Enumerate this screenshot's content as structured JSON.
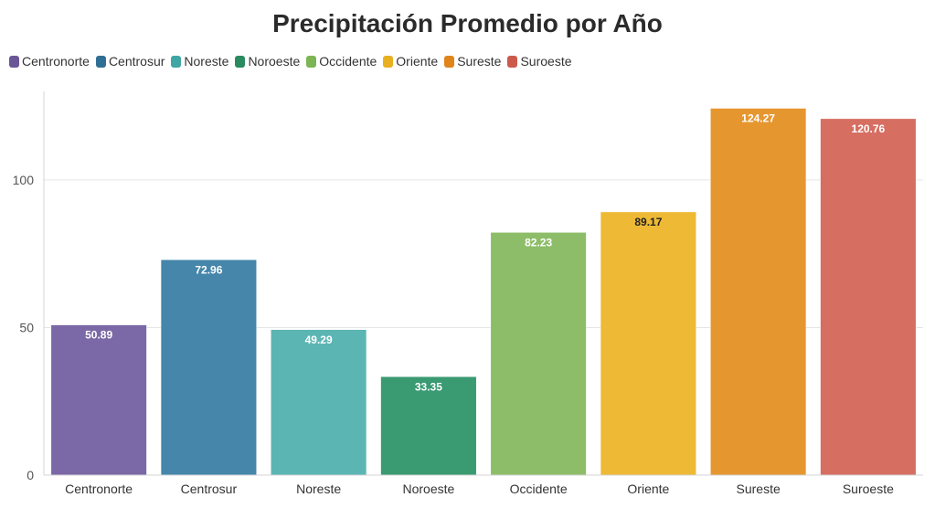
{
  "chart_data": {
    "type": "bar",
    "title": "Precipitación Promedio por Año",
    "categories": [
      "Centronorte",
      "Centrosur",
      "Noreste",
      "Noroeste",
      "Occidente",
      "Oriente",
      "Sureste",
      "Suroeste"
    ],
    "values": [
      50.89,
      72.96,
      49.29,
      33.35,
      82.23,
      89.17,
      124.27,
      120.76
    ],
    "data_labels": [
      "50.89",
      "72.96",
      "49.29",
      "33.35",
      "82.23",
      "89.17",
      "124.27",
      "120.76"
    ],
    "colors": [
      "#7b68a6",
      "#4586aa",
      "#5bb5b3",
      "#3a9a72",
      "#8dbd68",
      "#eeb935",
      "#e6962f",
      "#d66e62"
    ],
    "label_colors": [
      "#ffffff",
      "#ffffff",
      "#ffffff",
      "#ffffff",
      "#ffffff",
      "#222222",
      "#ffffff",
      "#ffffff"
    ],
    "legend": {
      "placement": "top-left",
      "items": [
        {
          "label": "Centronorte",
          "color": "#6a5896"
        },
        {
          "label": "Centrosur",
          "color": "#2f6f95"
        },
        {
          "label": "Noreste",
          "color": "#3fa6a3"
        },
        {
          "label": "Noroeste",
          "color": "#2a8a60"
        },
        {
          "label": "Occidente",
          "color": "#7db454"
        },
        {
          "label": "Oriente",
          "color": "#e8b020"
        },
        {
          "label": "Sureste",
          "color": "#e0841c"
        },
        {
          "label": "Suroeste",
          "color": "#cc5a4c"
        }
      ]
    },
    "y_ticks": [
      0,
      50,
      100
    ],
    "ylim": [
      0,
      130
    ],
    "xlabel": "",
    "ylabel": "",
    "grid": true
  }
}
